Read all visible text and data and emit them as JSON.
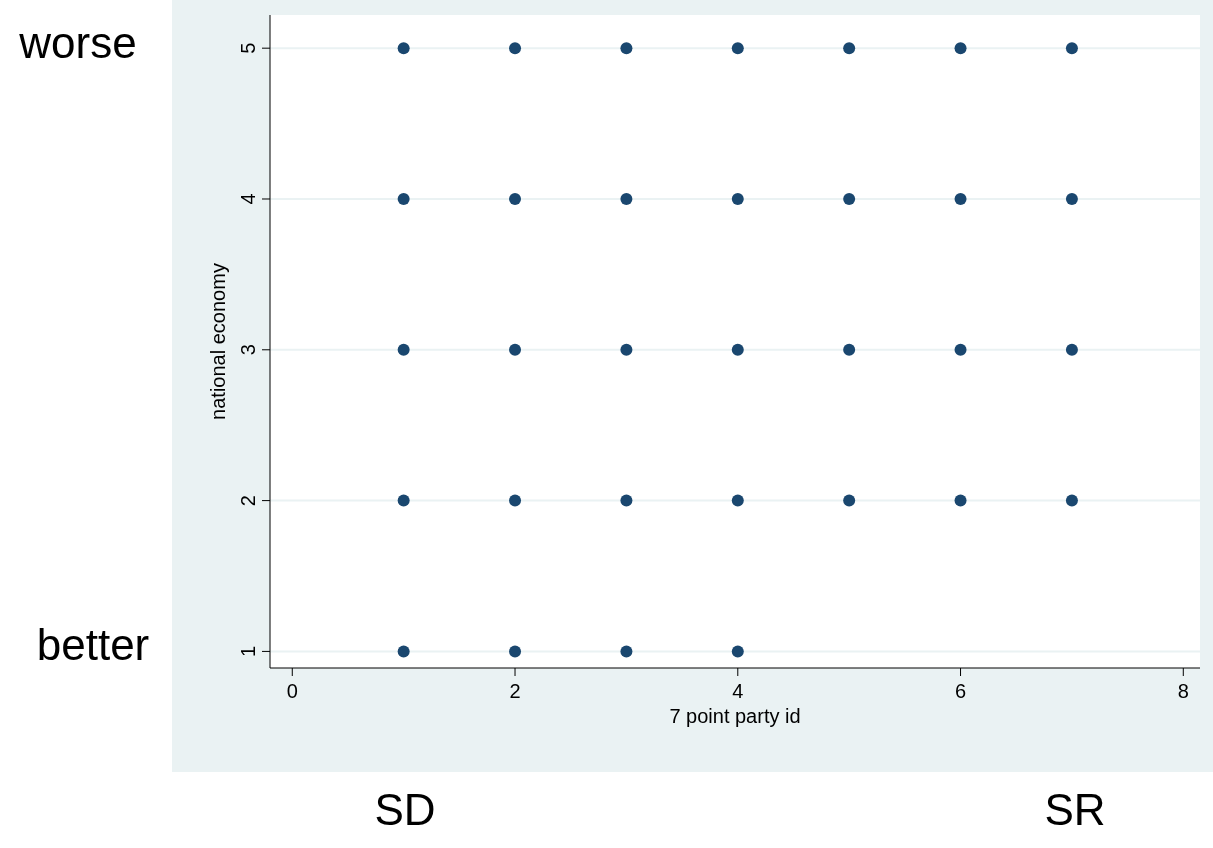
{
  "chart_data": {
    "type": "scatter",
    "xlabel": "7 point party id",
    "ylabel": "national economy",
    "x": [
      1,
      2,
      3,
      4,
      5,
      6,
      7,
      1,
      2,
      3,
      4,
      5,
      6,
      7,
      1,
      2,
      3,
      4,
      5,
      6,
      7,
      1,
      2,
      3,
      4,
      5,
      6,
      7,
      1,
      2,
      3,
      4
    ],
    "values": [
      5,
      5,
      5,
      5,
      5,
      5,
      5,
      4,
      4,
      4,
      4,
      4,
      4,
      4,
      3,
      3,
      3,
      3,
      3,
      3,
      3,
      2,
      2,
      2,
      2,
      2,
      2,
      2,
      1,
      1,
      1,
      1
    ],
    "color": "#1a476f",
    "marker": "circle",
    "xlim": [
      -0.2,
      8.15
    ],
    "xticks": [
      0,
      2,
      4,
      6,
      8
    ],
    "ylim": [
      0.89,
      5.22
    ],
    "yticks": [
      1,
      2,
      3,
      4,
      5
    ],
    "grid": "y",
    "annotations": [
      "worse",
      "better",
      "SD",
      "SR"
    ]
  }
}
